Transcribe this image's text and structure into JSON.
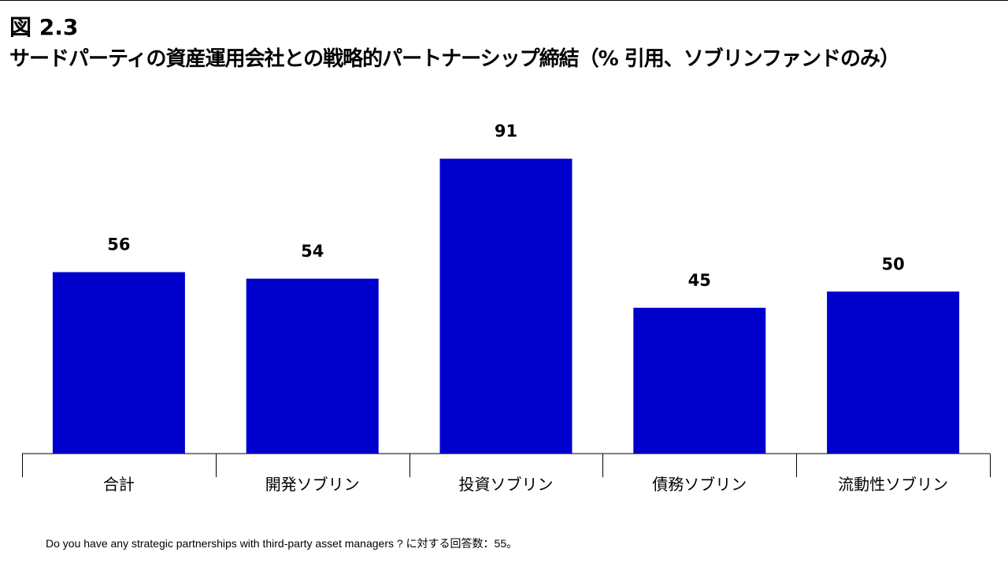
{
  "figure": {
    "number": "図 2.3",
    "title": "サードパーティの資産運用会社との戦略的パートナーシップ締結（% 引用、ソブリンファンドのみ）"
  },
  "chart_data": {
    "type": "bar",
    "categories": [
      "合計",
      "開発ソブリン",
      "投資ソブリン",
      "債務ソブリン",
      "流動性ソブリン"
    ],
    "values": [
      56,
      54,
      91,
      45,
      50
    ],
    "ylim": [
      0,
      100
    ],
    "grid": false,
    "legend": "none",
    "bar_color": "#0000CC",
    "title": "サードパーティの資産運用会社との戦略的パートナーシップ締結（% 引用、ソブリンファンドのみ）"
  },
  "footnote": "Do you have any strategic partnerships with third-party asset managers ? に対する回答数：55。"
}
